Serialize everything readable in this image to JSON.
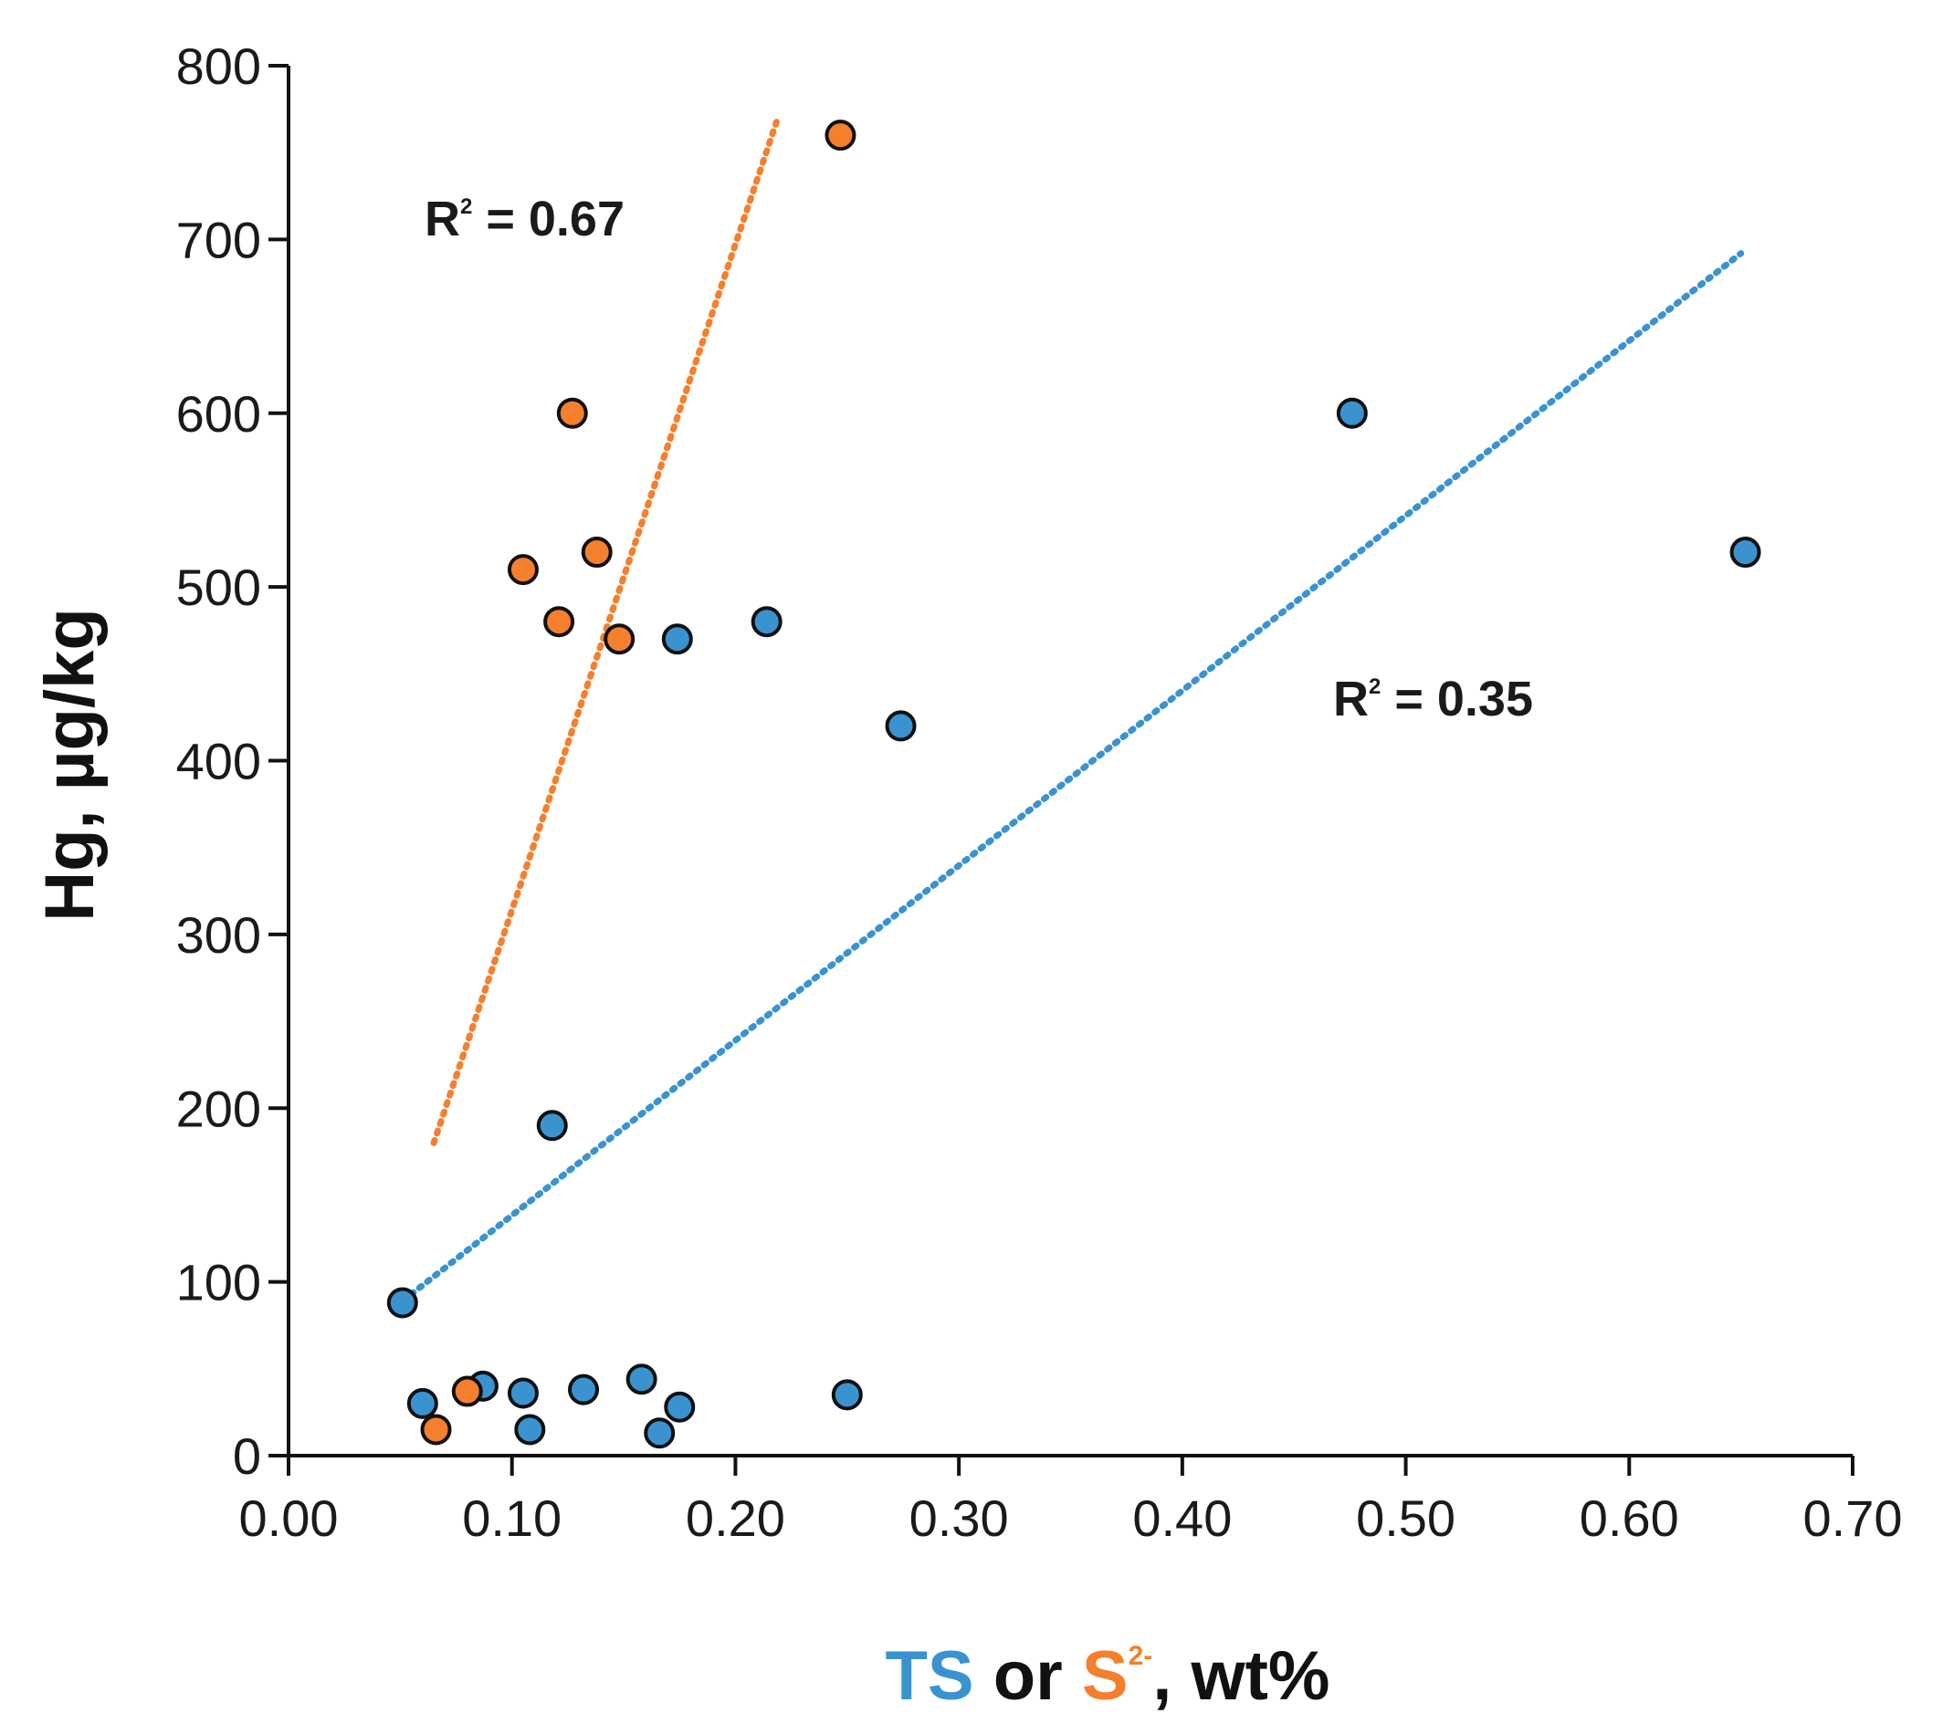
{
  "chart_data": {
    "type": "scatter",
    "title": "",
    "xlabel": {
      "part1": "TS",
      "part2": " or ",
      "part3_base": "S",
      "part3_sup": "2-",
      "part4": ", wt%"
    },
    "ylabel": "Hg, µg/kg",
    "xlim": [
      0,
      0.7
    ],
    "ylim": [
      0,
      800
    ],
    "x_ticks": [
      0.0,
      0.1,
      0.2,
      0.3,
      0.4,
      0.5,
      0.6,
      0.7
    ],
    "x_tick_labels": [
      "0.00",
      "0.10",
      "0.20",
      "0.30",
      "0.40",
      "0.50",
      "0.60",
      "0.70"
    ],
    "y_ticks": [
      0,
      100,
      200,
      300,
      400,
      500,
      600,
      700,
      800
    ],
    "y_tick_labels": [
      "0",
      "100",
      "200",
      "300",
      "400",
      "500",
      "600",
      "700",
      "800"
    ],
    "grid": false,
    "series": [
      {
        "name": "TS",
        "color": "#3a93cf",
        "points": [
          {
            "x": 0.051,
            "y": 88
          },
          {
            "x": 0.06,
            "y": 30
          },
          {
            "x": 0.087,
            "y": 40
          },
          {
            "x": 0.105,
            "y": 36
          },
          {
            "x": 0.108,
            "y": 15
          },
          {
            "x": 0.118,
            "y": 190
          },
          {
            "x": 0.132,
            "y": 38
          },
          {
            "x": 0.158,
            "y": 44
          },
          {
            "x": 0.166,
            "y": 13
          },
          {
            "x": 0.175,
            "y": 28
          },
          {
            "x": 0.174,
            "y": 470
          },
          {
            "x": 0.214,
            "y": 480
          },
          {
            "x": 0.25,
            "y": 35
          },
          {
            "x": 0.274,
            "y": 420
          },
          {
            "x": 0.476,
            "y": 600
          },
          {
            "x": 0.652,
            "y": 520
          }
        ],
        "trendline": {
          "x": [
            0.055,
            0.65
          ],
          "y": [
            93,
            692
          ],
          "r2_label": "R",
          "r2_sup": "2",
          "r2_value": " = 0.35"
        }
      },
      {
        "name": "S2-",
        "color": "#f47f2d",
        "points": [
          {
            "x": 0.066,
            "y": 15
          },
          {
            "x": 0.08,
            "y": 37
          },
          {
            "x": 0.105,
            "y": 510
          },
          {
            "x": 0.121,
            "y": 480
          },
          {
            "x": 0.127,
            "y": 600
          },
          {
            "x": 0.138,
            "y": 520
          },
          {
            "x": 0.148,
            "y": 470
          },
          {
            "x": 0.247,
            "y": 760
          }
        ],
        "trendline": {
          "x": [
            0.065,
            0.219
          ],
          "y": [
            180,
            770
          ],
          "r2_label": "R",
          "r2_sup": "2",
          "r2_value": " = 0.67"
        }
      }
    ]
  }
}
